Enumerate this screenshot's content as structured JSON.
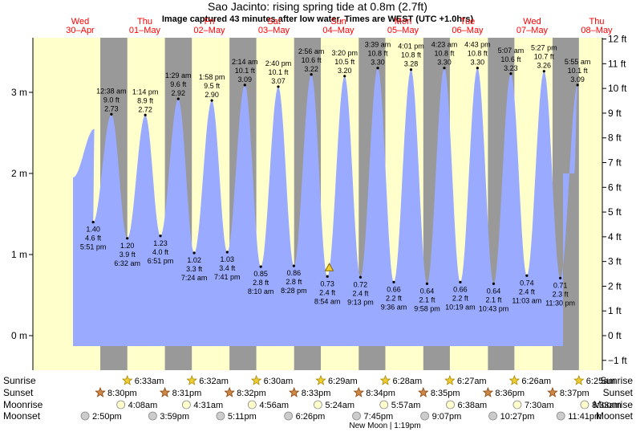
{
  "title": "Sao Jacinto: rising  spring tide at 0.8m (2.7ft)",
  "subtitle": "Image captured 43 minutes after low water. Times are WEST (UTC +1.0hrs)",
  "colors": {
    "day": "#ffffcc",
    "night": "#999999",
    "tide_fill": "#99aaff",
    "day_label": "#ff0000",
    "text": "#000000"
  },
  "days": [
    {
      "dow": "Wed",
      "date": "30–Apr"
    },
    {
      "dow": "Thu",
      "date": "01–May"
    },
    {
      "dow": "Fri",
      "date": "02–May"
    },
    {
      "dow": "Sat",
      "date": "03–May"
    },
    {
      "dow": "Sun",
      "date": "04–May"
    },
    {
      "dow": "Mon",
      "date": "05–May"
    },
    {
      "dow": "Tue",
      "date": "06–May"
    },
    {
      "dow": "Wed",
      "date": "07–May"
    },
    {
      "dow": "Thu",
      "date": "08–May"
    }
  ],
  "chart_data": {
    "type": "area",
    "title": "Sao Jacinto: rising  spring tide at 0.8m (2.7ft)",
    "y_left_unit": "m",
    "y_left_ticks": [
      "0 m",
      "1 m",
      "2 m",
      "3 m"
    ],
    "y_right_ticks": [
      "−1 ft",
      "0 ft",
      "1 ft",
      "2 ft",
      "3 ft",
      "4 ft",
      "5 ft",
      "6 ft",
      "7 ft",
      "8 ft",
      "9 ft",
      "10 ft",
      "11 ft",
      "12 ft"
    ],
    "y_range_m": [
      -0.3,
      3.7
    ],
    "extremes": [
      {
        "kind": "high",
        "day": 0,
        "time": "",
        "m": 2.55,
        "ft": "",
        "m_label": "",
        "labeled": false,
        "tdec": 18.3
      },
      {
        "kind": "low",
        "day": 0,
        "time": "5:51 pm",
        "m": 1.4,
        "ft": "4.6 ft",
        "m_label": "1.40 m",
        "labeled": true
      },
      {
        "kind": "high",
        "day": 1,
        "time": "12:38 am",
        "m": 2.73,
        "ft": "9.0 ft",
        "m_label": "2.73 m",
        "labeled": true
      },
      {
        "kind": "low",
        "day": 1,
        "time": "6:32 am",
        "m": 1.2,
        "ft": "3.9 ft",
        "m_label": "1.20 m",
        "labeled": true
      },
      {
        "kind": "high",
        "day": 1,
        "time": "1:14 pm",
        "m": 2.72,
        "ft": "8.9 ft",
        "m_label": "2.72 m",
        "labeled": true
      },
      {
        "kind": "low",
        "day": 1,
        "time": "6:51 pm",
        "m": 1.23,
        "ft": "4.0 ft",
        "m_label": "1.23 m",
        "labeled": true
      },
      {
        "kind": "high",
        "day": 2,
        "time": "1:29 am",
        "m": 2.92,
        "ft": "9.6 ft",
        "m_label": "2.92 m",
        "labeled": true
      },
      {
        "kind": "low",
        "day": 2,
        "time": "7:24 am",
        "m": 1.02,
        "ft": "3.3 ft",
        "m_label": "1.02 m",
        "labeled": true
      },
      {
        "kind": "high",
        "day": 2,
        "time": "1:58 pm",
        "m": 2.9,
        "ft": "9.5 ft",
        "m_label": "2.90 m",
        "labeled": true
      },
      {
        "kind": "low",
        "day": 2,
        "time": "7:41 pm",
        "m": 1.03,
        "ft": "3.4 ft",
        "m_label": "1.03 m",
        "labeled": true
      },
      {
        "kind": "high",
        "day": 3,
        "time": "2:14 am",
        "m": 3.09,
        "ft": "10.1 ft",
        "m_label": "3.09 m",
        "labeled": true
      },
      {
        "kind": "low",
        "day": 3,
        "time": "8:10 am",
        "m": 0.85,
        "ft": "2.8 ft",
        "m_label": "0.85 m",
        "labeled": true
      },
      {
        "kind": "high",
        "day": 3,
        "time": "2:40 pm",
        "m": 3.07,
        "ft": "10.1 ft",
        "m_label": "3.07 m",
        "labeled": true
      },
      {
        "kind": "low",
        "day": 3,
        "time": "8:28 pm",
        "m": 0.86,
        "ft": "2.8 ft",
        "m_label": "0.86 m",
        "labeled": true
      },
      {
        "kind": "high",
        "day": 4,
        "time": "2:56 am",
        "m": 3.22,
        "ft": "10.6 ft",
        "m_label": "3.22 m",
        "labeled": true
      },
      {
        "kind": "low",
        "day": 4,
        "time": "8:54 am",
        "m": 0.73,
        "ft": "2.4 ft",
        "m_label": "0.73 m",
        "labeled": true
      },
      {
        "kind": "high",
        "day": 4,
        "time": "3:20 pm",
        "m": 3.2,
        "ft": "10.5 ft",
        "m_label": "3.20 m",
        "labeled": true
      },
      {
        "kind": "low",
        "day": 4,
        "time": "9:13 pm",
        "m": 0.72,
        "ft": "2.4 ft",
        "m_label": "0.72 m",
        "labeled": true
      },
      {
        "kind": "high",
        "day": 5,
        "time": "3:39 am",
        "m": 3.3,
        "ft": "10.8 ft",
        "m_label": "3.30 m",
        "labeled": true
      },
      {
        "kind": "low",
        "day": 5,
        "time": "9:36 am",
        "m": 0.66,
        "ft": "2.2 ft",
        "m_label": "0.66 m",
        "labeled": true
      },
      {
        "kind": "high",
        "day": 5,
        "time": "4:01 pm",
        "m": 3.28,
        "ft": "10.8 ft",
        "m_label": "3.28 m",
        "labeled": true
      },
      {
        "kind": "low",
        "day": 5,
        "time": "9:58 pm",
        "m": 0.64,
        "ft": "2.1 ft",
        "m_label": "0.64 m",
        "labeled": true
      },
      {
        "kind": "high",
        "day": 6,
        "time": "4:23 am",
        "m": 3.3,
        "ft": "10.8 ft",
        "m_label": "3.30 m",
        "labeled": true
      },
      {
        "kind": "low",
        "day": 6,
        "time": "10:19 am",
        "m": 0.66,
        "ft": "2.2 ft",
        "m_label": "0.66 m",
        "labeled": true
      },
      {
        "kind": "high",
        "day": 6,
        "time": "4:43 pm",
        "m": 3.3,
        "ft": "10.8 ft",
        "m_label": "3.30 m",
        "labeled": true
      },
      {
        "kind": "low",
        "day": 6,
        "time": "10:43 pm",
        "m": 0.64,
        "ft": "2.1 ft",
        "m_label": "0.64 m",
        "labeled": true
      },
      {
        "kind": "high",
        "day": 7,
        "time": "5:07 am",
        "m": 3.23,
        "ft": "10.6 ft",
        "m_label": "3.23 m",
        "labeled": true
      },
      {
        "kind": "low",
        "day": 7,
        "time": "11:03 am",
        "m": 0.74,
        "ft": "2.4 ft",
        "m_label": "0.74 m",
        "labeled": true
      },
      {
        "kind": "high",
        "day": 7,
        "time": "5:27 pm",
        "m": 3.26,
        "ft": "10.7 ft",
        "m_label": "3.26 m",
        "labeled": true
      },
      {
        "kind": "low",
        "day": 7,
        "time": "11:30 pm",
        "m": 0.71,
        "ft": "2.3 ft",
        "m_label": "0.71 m",
        "labeled": true
      },
      {
        "kind": "high",
        "day": 8,
        "time": "5:55 am",
        "m": 3.09,
        "ft": "10.1 ft",
        "m_label": "3.09 m",
        "labeled": true
      }
    ],
    "current": {
      "day": 4,
      "time": "9:37 am",
      "m": 0.8
    }
  },
  "sun_moon": {
    "row_labels": [
      "Sunrise",
      "Sunset",
      "Moonrise",
      "Moonset"
    ],
    "sunrise": [
      {
        "day": 1,
        "time": "6:33am"
      },
      {
        "day": 2,
        "time": "6:32am"
      },
      {
        "day": 3,
        "time": "6:30am"
      },
      {
        "day": 4,
        "time": "6:29am"
      },
      {
        "day": 5,
        "time": "6:28am"
      },
      {
        "day": 6,
        "time": "6:27am"
      },
      {
        "day": 7,
        "time": "6:26am"
      },
      {
        "day": 8,
        "time": "6:25am"
      }
    ],
    "sunset": [
      {
        "day": 0,
        "time": "8:30pm"
      },
      {
        "day": 1,
        "time": "8:31pm"
      },
      {
        "day": 2,
        "time": "8:32pm"
      },
      {
        "day": 3,
        "time": "8:33pm"
      },
      {
        "day": 4,
        "time": "8:34pm"
      },
      {
        "day": 5,
        "time": "8:35pm"
      },
      {
        "day": 6,
        "time": "8:36pm"
      },
      {
        "day": 7,
        "time": "8:37pm"
      }
    ],
    "moonrise": [
      {
        "day": 1,
        "time": "4:08am"
      },
      {
        "day": 2,
        "time": "4:31am"
      },
      {
        "day": 3,
        "time": "4:56am"
      },
      {
        "day": 4,
        "time": "5:24am"
      },
      {
        "day": 5,
        "time": "5:57am"
      },
      {
        "day": 6,
        "time": "6:38am"
      },
      {
        "day": 7,
        "time": "7:30am"
      },
      {
        "day": 8,
        "time": "8:33am"
      }
    ],
    "moonset": [
      {
        "day": 0,
        "time": "2:50pm"
      },
      {
        "day": 1,
        "time": "3:59pm"
      },
      {
        "day": 2,
        "time": "5:11pm"
      },
      {
        "day": 3,
        "time": "6:26pm"
      },
      {
        "day": 4,
        "time": "7:45pm"
      },
      {
        "day": 5,
        "time": "9:07pm"
      },
      {
        "day": 6,
        "time": "10:27pm"
      },
      {
        "day": 7,
        "time": "11:41pm"
      }
    ],
    "new_moon": "New Moon | 1:19pm"
  }
}
